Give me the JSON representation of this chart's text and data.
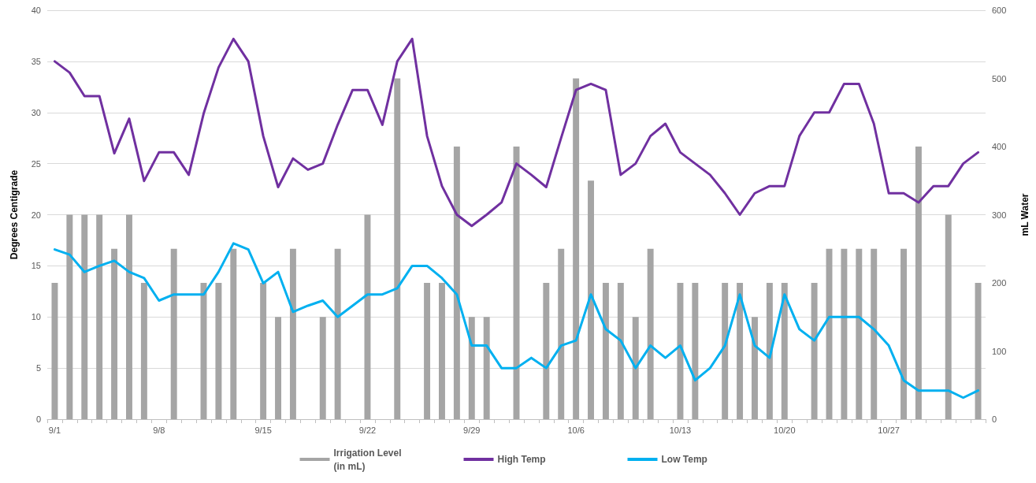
{
  "chart_data": {
    "type": "bar",
    "categories": [
      "9/1",
      null,
      null,
      null,
      null,
      null,
      null,
      "9/8",
      null,
      null,
      null,
      null,
      null,
      null,
      "9/15",
      null,
      null,
      null,
      null,
      null,
      null,
      "9/22",
      null,
      null,
      null,
      null,
      null,
      null,
      "9/29",
      null,
      null,
      null,
      null,
      null,
      null,
      "10/6",
      null,
      null,
      null,
      null,
      null,
      null,
      "10/13",
      null,
      null,
      null,
      null,
      null,
      null,
      "10/20",
      null,
      null,
      null,
      null,
      null,
      null,
      "10/27",
      null,
      null,
      null,
      null,
      null,
      null
    ],
    "series": [
      {
        "name": "Irrigation Level (in mL)",
        "axis": "y2",
        "color": "#a5a5a5",
        "values": [
          200,
          300,
          300,
          300,
          250,
          300,
          200,
          null,
          250,
          null,
          200,
          200,
          250,
          null,
          200,
          150,
          250,
          null,
          150,
          250,
          null,
          300,
          null,
          500,
          null,
          200,
          200,
          400,
          150,
          150,
          null,
          400,
          null,
          200,
          250,
          500,
          350,
          200,
          200,
          150,
          250,
          null,
          200,
          200,
          null,
          200,
          200,
          150,
          200,
          200,
          null,
          200,
          250,
          250,
          250,
          250,
          null,
          250,
          400,
          null,
          300,
          null,
          200
        ]
      },
      {
        "name": "High Temp",
        "type": "line",
        "color": "#7030a0",
        "values": [
          35.0,
          33.9,
          31.6,
          31.6,
          26.0,
          29.4,
          23.3,
          26.1,
          26.1,
          23.9,
          29.9,
          34.4,
          37.2,
          35.0,
          27.7,
          22.7,
          25.5,
          24.4,
          25.0,
          28.8,
          32.2,
          32.2,
          28.8,
          35.0,
          37.2,
          27.7,
          22.8,
          20.0,
          18.9,
          20.0,
          21.2,
          25.0,
          23.9,
          22.7,
          27.5,
          32.2,
          32.8,
          32.2,
          23.9,
          25.0,
          27.7,
          28.9,
          26.1,
          25.0,
          23.9,
          22.1,
          20.0,
          22.1,
          22.8,
          22.8,
          27.7,
          30.0,
          30.0,
          32.8,
          32.8,
          28.9,
          22.1,
          22.1,
          21.2,
          22.8,
          22.8,
          25.0,
          26.1
        ]
      },
      {
        "name": "Low Temp",
        "type": "line",
        "color": "#00b0f0",
        "values": [
          16.6,
          16.1,
          14.4,
          15.0,
          15.5,
          14.4,
          13.8,
          11.6,
          12.2,
          12.2,
          12.2,
          14.4,
          17.2,
          16.6,
          13.3,
          14.4,
          10.5,
          11.1,
          11.6,
          10.0,
          11.1,
          12.2,
          12.2,
          12.8,
          15.0,
          15.0,
          13.8,
          12.2,
          7.2,
          7.2,
          5.0,
          5.0,
          6.0,
          5.0,
          7.2,
          7.7,
          12.2,
          8.8,
          7.7,
          5.0,
          7.2,
          6.0,
          7.2,
          3.8,
          5.0,
          7.2,
          12.2,
          7.2,
          6.0,
          12.2,
          8.8,
          7.7,
          10.0,
          10.0,
          10.0,
          8.8,
          7.2,
          3.8,
          2.8,
          2.8,
          2.8,
          2.1,
          2.8
        ]
      }
    ],
    "ylabel": "Degrees Centigrade",
    "y2label": "mL Water",
    "ylim": [
      0,
      40
    ],
    "yticks": [
      0,
      5,
      10,
      15,
      20,
      25,
      30,
      35,
      40
    ],
    "y2lim": [
      0,
      600
    ],
    "y2ticks": [
      0,
      100,
      200,
      300,
      400,
      500,
      600
    ],
    "grid": "y",
    "legend": "bottom",
    "marker": "none",
    "line_style": "solid"
  }
}
